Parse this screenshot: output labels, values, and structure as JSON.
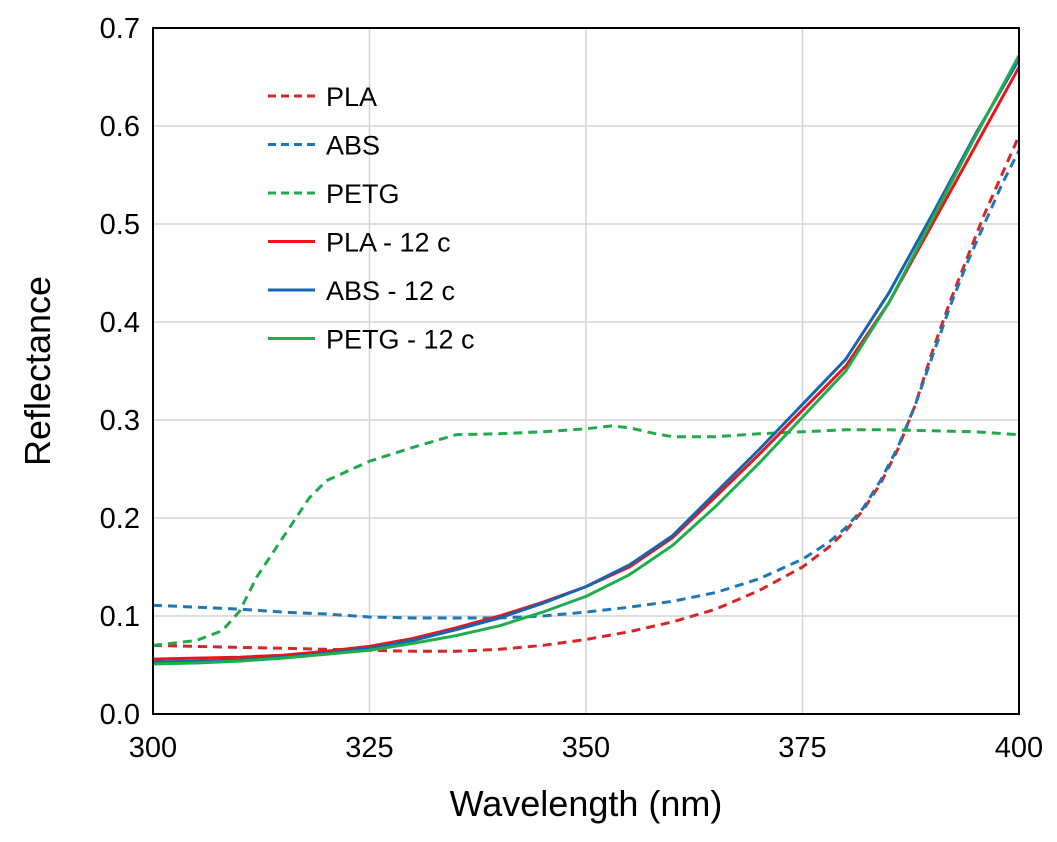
{
  "chart_data": {
    "type": "line",
    "title": "",
    "xlabel": "Wavelength (nm)",
    "ylabel": "Reflectance",
    "xlim": [
      300,
      400
    ],
    "ylim": [
      0,
      0.7
    ],
    "xticks": [
      300,
      325,
      350,
      375,
      400
    ],
    "xtick_labels": [
      "300",
      "325",
      "350",
      "375",
      "400"
    ],
    "yticks": [
      0,
      0.1,
      0.2,
      0.3,
      0.4,
      0.5,
      0.6,
      0.7
    ],
    "ytick_labels": [
      "0.0",
      "0.1",
      "0.2",
      "0.3",
      "0.4",
      "0.5",
      "0.6",
      "0.7"
    ],
    "grid": true,
    "legend_position": "top-left",
    "series": [
      {
        "name": "PLA",
        "color": "#d62728",
        "dash": "dashed",
        "x": [
          300,
          305,
          310,
          315,
          320,
          325,
          330,
          335,
          340,
          345,
          350,
          355,
          360,
          365,
          370,
          375,
          378,
          380,
          382,
          384,
          386,
          388,
          390,
          392,
          394,
          396,
          398,
          400
        ],
        "y": [
          0.07,
          0.069,
          0.068,
          0.067,
          0.066,
          0.065,
          0.064,
          0.064,
          0.066,
          0.07,
          0.076,
          0.084,
          0.094,
          0.107,
          0.126,
          0.15,
          0.17,
          0.187,
          0.208,
          0.235,
          0.27,
          0.315,
          0.37,
          0.42,
          0.465,
          0.51,
          0.55,
          0.59
        ]
      },
      {
        "name": "ABS",
        "color": "#1f77b4",
        "dash": "dashed",
        "x": [
          300,
          305,
          310,
          315,
          320,
          325,
          330,
          335,
          340,
          345,
          350,
          355,
          360,
          365,
          370,
          375,
          378,
          380,
          382,
          384,
          386,
          388,
          390,
          392,
          394,
          396,
          398,
          400
        ],
        "y": [
          0.111,
          0.109,
          0.107,
          0.104,
          0.102,
          0.099,
          0.098,
          0.098,
          0.098,
          0.1,
          0.104,
          0.109,
          0.115,
          0.124,
          0.138,
          0.158,
          0.175,
          0.19,
          0.21,
          0.238,
          0.272,
          0.315,
          0.365,
          0.415,
          0.46,
          0.5,
          0.54,
          0.575
        ]
      },
      {
        "name": "PETG",
        "color": "#22a94b",
        "dash": "dashed",
        "x": [
          300,
          305,
          308,
          310,
          312,
          315,
          318,
          320,
          323,
          325,
          330,
          335,
          340,
          345,
          350,
          353,
          355,
          358,
          360,
          365,
          370,
          375,
          380,
          385,
          390,
          395,
          400
        ],
        "y": [
          0.07,
          0.075,
          0.085,
          0.105,
          0.14,
          0.18,
          0.22,
          0.238,
          0.25,
          0.258,
          0.272,
          0.285,
          0.286,
          0.288,
          0.291,
          0.294,
          0.292,
          0.286,
          0.283,
          0.283,
          0.286,
          0.288,
          0.29,
          0.29,
          0.289,
          0.288,
          0.285
        ]
      },
      {
        "name": "PLA - 12 c",
        "color": "#e8161b",
        "dash": "solid",
        "x": [
          300,
          305,
          310,
          315,
          320,
          325,
          330,
          335,
          340,
          345,
          350,
          355,
          360,
          365,
          370,
          375,
          380,
          385,
          390,
          395,
          400
        ],
        "y": [
          0.056,
          0.057,
          0.058,
          0.06,
          0.064,
          0.069,
          0.077,
          0.088,
          0.1,
          0.114,
          0.13,
          0.15,
          0.18,
          0.222,
          0.265,
          0.31,
          0.355,
          0.42,
          0.5,
          0.58,
          0.66
        ]
      },
      {
        "name": "ABS - 12 c",
        "color": "#1565b0",
        "dash": "solid",
        "x": [
          300,
          305,
          310,
          315,
          320,
          325,
          330,
          335,
          340,
          345,
          350,
          355,
          360,
          365,
          370,
          375,
          380,
          385,
          390,
          395,
          400
        ],
        "y": [
          0.053,
          0.054,
          0.055,
          0.058,
          0.062,
          0.067,
          0.075,
          0.086,
          0.098,
          0.113,
          0.13,
          0.152,
          0.182,
          0.226,
          0.27,
          0.316,
          0.362,
          0.43,
          0.51,
          0.592,
          0.668
        ]
      },
      {
        "name": "PETG - 12 c",
        "color": "#1fae4e",
        "dash": "solid",
        "x": [
          300,
          305,
          310,
          315,
          320,
          325,
          330,
          335,
          340,
          345,
          350,
          355,
          360,
          365,
          370,
          375,
          380,
          385,
          390,
          395,
          400
        ],
        "y": [
          0.051,
          0.052,
          0.054,
          0.057,
          0.061,
          0.065,
          0.072,
          0.08,
          0.09,
          0.104,
          0.12,
          0.142,
          0.172,
          0.212,
          0.256,
          0.303,
          0.35,
          0.42,
          0.505,
          0.59,
          0.672
        ]
      }
    ]
  }
}
